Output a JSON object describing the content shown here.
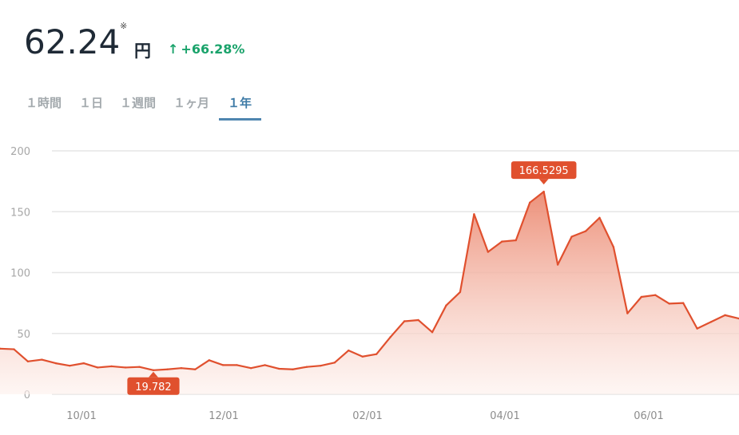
{
  "header": {
    "price": "62.24",
    "note_mark": "※",
    "unit": "円",
    "change_arrow": "↑",
    "change": "+66.28%"
  },
  "tabs": [
    {
      "label": "１時間",
      "active": false
    },
    {
      "label": "１日",
      "active": false
    },
    {
      "label": "１週間",
      "active": false
    },
    {
      "label": "１ヶ月",
      "active": false
    },
    {
      "label": "１年",
      "active": true
    }
  ],
  "colors": {
    "line": "#e0502e",
    "area_top": "#ec8b73",
    "area_bottom": "#fdf0ec",
    "label_bg": "#e0502e",
    "positive": "#1aa36b",
    "tab_active": "#3d7aa6",
    "grid": "#e6e6e6"
  },
  "chart_data": {
    "type": "area",
    "title": "",
    "xlabel": "",
    "ylabel": "",
    "ylim": [
      0,
      200
    ],
    "yticks": [
      0,
      50,
      100,
      150,
      200
    ],
    "xticks": [
      "10/01",
      "12/01",
      "02/01",
      "04/01",
      "06/01"
    ],
    "grid": true,
    "annotations": {
      "max": {
        "label": "166.5295",
        "index": 39
      },
      "min": {
        "label": "19.782",
        "index": 11
      }
    },
    "series": [
      {
        "values": [
          37.5,
          37,
          27,
          28.5,
          25.5,
          23.5,
          25.5,
          22,
          23,
          22,
          22.5,
          19.8,
          20.5,
          21.5,
          20.5,
          28,
          24,
          24,
          21.5,
          24,
          21,
          20.5,
          22.5,
          23.5,
          26,
          36,
          31,
          33,
          47,
          60,
          61,
          51,
          73,
          84,
          148,
          117,
          125.5,
          126.5,
          157.5,
          166.5,
          106.5,
          129.5,
          134,
          145,
          121,
          66.5,
          80,
          81.5,
          74.5,
          75,
          54,
          59.5,
          65,
          62.24
        ]
      }
    ]
  }
}
